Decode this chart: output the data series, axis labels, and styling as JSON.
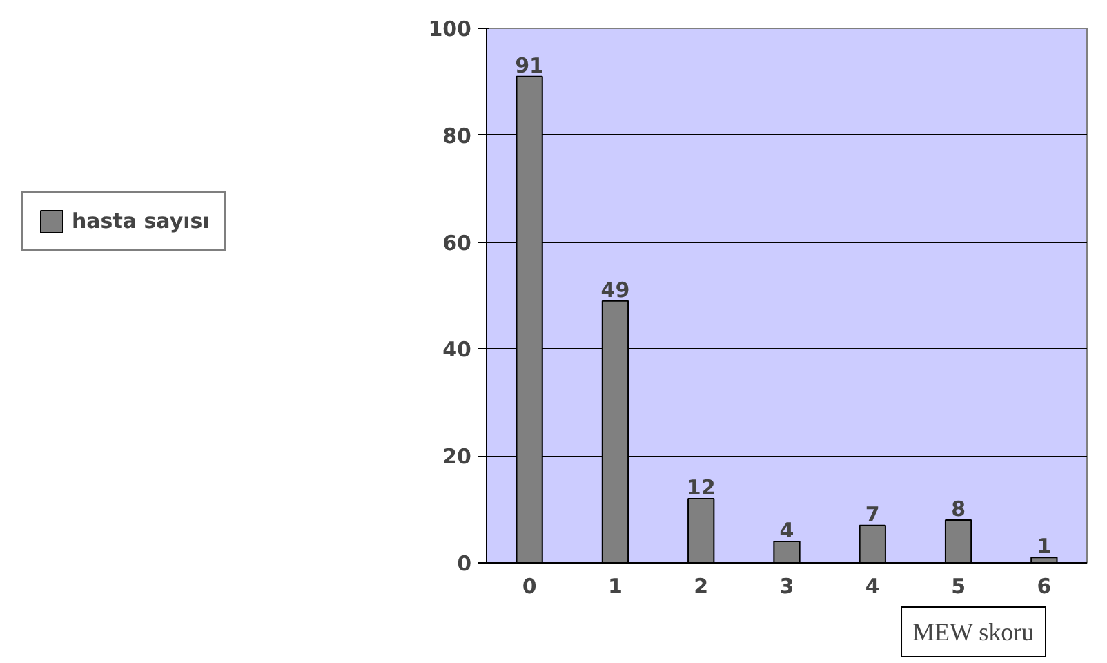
{
  "chart_data": {
    "type": "bar",
    "xlabel": "MEW skoru",
    "categories": [
      "0",
      "1",
      "2",
      "3",
      "4",
      "5",
      "6"
    ],
    "series": [
      {
        "name": "hasta sayısı",
        "color": "#808080",
        "values": [
          91,
          49,
          12,
          4,
          7,
          8,
          1
        ]
      }
    ],
    "ylim": [
      0,
      100
    ],
    "yticks": [
      0,
      20,
      40,
      60,
      80,
      100
    ],
    "grid": "y",
    "legend": "left",
    "data_labels": true
  }
}
